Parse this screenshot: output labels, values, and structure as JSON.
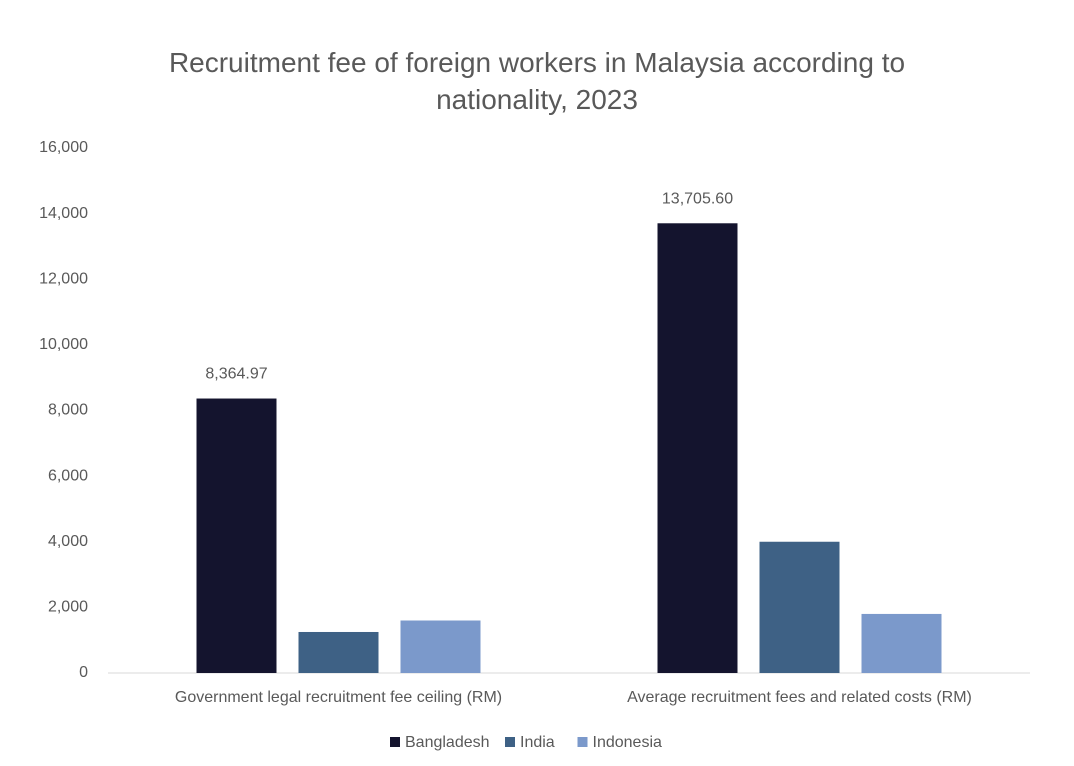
{
  "chart_data": {
    "type": "bar",
    "title": "Recruitment fee of foreign workers in Malaysia according to nationality, 2023",
    "categories": [
      "Government legal recruitment fee ceiling (RM)",
      "Average recruitment fees and related costs (RM)"
    ],
    "series": [
      {
        "name": "Bangladesh",
        "color": "#14142e",
        "values": [
          8364.97,
          13705.6
        ],
        "value_labels": [
          "8,364.97",
          "13,705.60"
        ]
      },
      {
        "name": "India",
        "color": "#3e6185",
        "values": [
          1250,
          4000
        ]
      },
      {
        "name": "Indonesia",
        "color": "#7b99cb",
        "values": [
          1600,
          1800
        ]
      }
    ],
    "ylim": [
      0,
      16000
    ],
    "yticks": [
      0,
      {
        "value": 2000,
        "label": "2,000"
      },
      {
        "value": 4000,
        "label": "4,000"
      },
      {
        "value": 6000,
        "label": "6,000"
      },
      {
        "value": 8000,
        "label": "8,000"
      },
      {
        "value": 10000,
        "label": "10,000"
      },
      {
        "value": 12000,
        "label": "12,000"
      },
      {
        "value": 14000,
        "label": "14,000"
      },
      {
        "value": 16000,
        "label": "16,000"
      }
    ],
    "grid": false,
    "legend": "bottom"
  }
}
